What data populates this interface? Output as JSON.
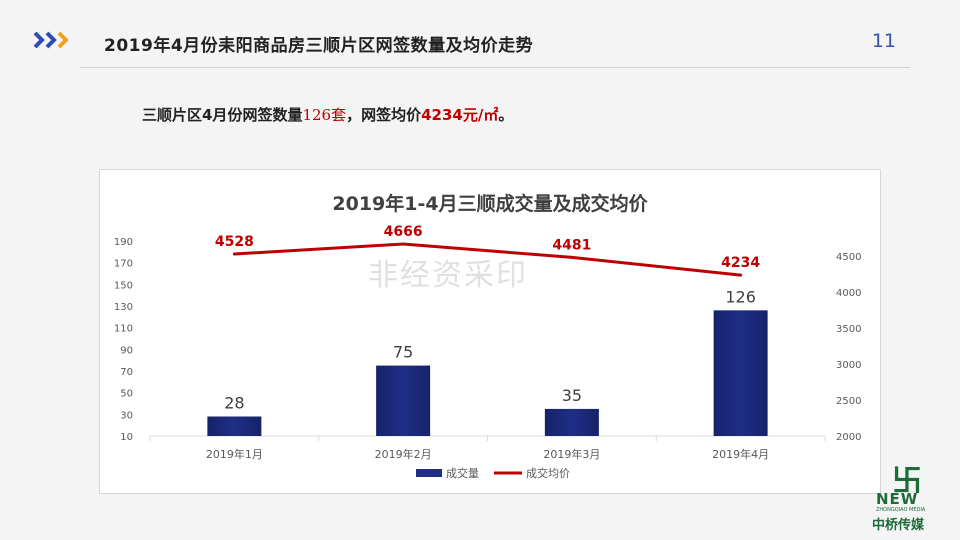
{
  "header": {
    "title": "2019年4月份耒阳商品房三顺片区网签数量及均价走势",
    "page_number": "11"
  },
  "summary": {
    "part1": "三顺片区4月份网签数量",
    "count": "126套",
    "part2": "，网签均价",
    "price": "4234元/㎡",
    "end": "。"
  },
  "watermark": "非经资采印",
  "logo": {
    "mark": "卐",
    "new": "NEW",
    "sub": "ZHONGQIAO MEDIA",
    "cn": "中桥传媒"
  },
  "colors": {
    "bar": "#1f2f86",
    "line": "#c00000",
    "accent_chevron": "#2f4bb5",
    "accent_chevron2": "#f0a020"
  },
  "chart_data": {
    "type": "bar",
    "title": "2019年1-4月三顺成交量及成交均价",
    "categories": [
      "2019年1月",
      "2019年2月",
      "2019年3月",
      "2019年4月"
    ],
    "series": [
      {
        "name": "成交量",
        "type": "bar",
        "axis": "left",
        "values": [
          28,
          75,
          35,
          126
        ]
      },
      {
        "name": "成交均价",
        "type": "line",
        "axis": "right",
        "values": [
          4528,
          4666,
          4481,
          4234
        ]
      }
    ],
    "y_left": {
      "ylim": [
        10,
        190
      ],
      "ticks": [
        10,
        30,
        50,
        70,
        90,
        110,
        130,
        150,
        170,
        190
      ]
    },
    "y_right": {
      "ylim": [
        2000,
        4500
      ],
      "ticks": [
        2000,
        2500,
        3000,
        3500,
        4000,
        4500
      ]
    },
    "legend": "bottom",
    "grid": false
  }
}
